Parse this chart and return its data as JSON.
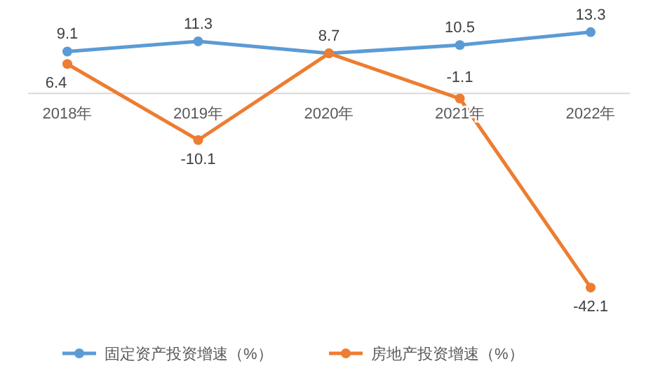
{
  "chart_data": {
    "type": "line",
    "categories": [
      "2018年",
      "2019年",
      "2020年",
      "2021年",
      "2022年"
    ],
    "series": [
      {
        "name": "固定资产投资增速（%）",
        "color": "#5b9bd5",
        "values": [
          9.1,
          11.3,
          8.7,
          10.5,
          13.3
        ],
        "value_labels": [
          "9.1",
          "11.3",
          "8.7",
          "10.5",
          "13.3"
        ]
      },
      {
        "name": "房地产投资增速（%）",
        "color": "#ed7d31",
        "values": [
          6.4,
          -10.1,
          8.7,
          -1.1,
          -42.1
        ],
        "value_labels": [
          "6.4",
          "-10.1",
          null,
          "-1.1",
          "-42.1"
        ]
      }
    ],
    "marker": "circle",
    "legend": "bottom"
  }
}
